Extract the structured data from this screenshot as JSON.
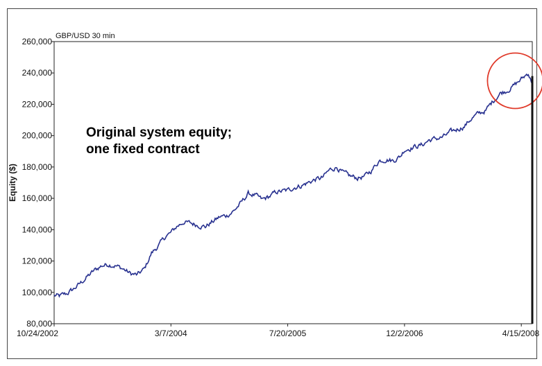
{
  "chart_data": {
    "type": "line",
    "title": "GBP/USD 30 min",
    "xlabel": "",
    "ylabel": "Equity ($)",
    "x_tick_labels": [
      "10/24/2002",
      "3/7/2004",
      "7/20/2005",
      "12/2/2006",
      "4/15/2008"
    ],
    "y_tick_labels": [
      "80,000",
      "100,000",
      "120,000",
      "140,000",
      "160,000",
      "180,000",
      "200,000",
      "220,000",
      "240,000",
      "260,000"
    ],
    "ylim": [
      80000,
      260000
    ],
    "xlim": [
      "2002-10-24",
      "2008-06-01"
    ],
    "grid": false,
    "series": [
      {
        "color": "#27308f",
        "x": [
          "2002-10-24",
          "2002-11-15",
          "2002-12-15",
          "2003-01-15",
          "2003-02-15",
          "2003-03-15",
          "2003-04-15",
          "2003-05-15",
          "2003-06-15",
          "2003-07-15",
          "2003-08-15",
          "2003-09-15",
          "2003-10-15",
          "2003-11-15",
          "2003-12-15",
          "2004-01-15",
          "2004-02-15",
          "2004-03-07",
          "2004-04-01",
          "2004-05-01",
          "2004-06-01",
          "2004-07-01",
          "2004-08-01",
          "2004-09-01",
          "2004-10-01",
          "2004-11-01",
          "2004-12-01",
          "2005-01-01",
          "2005-02-01",
          "2005-03-01",
          "2005-04-01",
          "2005-05-01",
          "2005-06-01",
          "2005-07-20",
          "2005-08-15",
          "2005-09-15",
          "2005-10-15",
          "2005-11-15",
          "2005-12-15",
          "2006-01-15",
          "2006-02-15",
          "2006-03-15",
          "2006-04-15",
          "2006-05-15",
          "2006-06-15",
          "2006-07-15",
          "2006-08-15",
          "2006-09-15",
          "2006-10-15",
          "2006-11-15",
          "2006-12-02",
          "2007-01-15",
          "2007-02-15",
          "2007-03-15",
          "2007-04-15",
          "2007-05-15",
          "2007-06-15",
          "2007-07-15",
          "2007-08-15",
          "2007-09-15",
          "2007-10-15",
          "2007-11-15",
          "2007-12-15",
          "2008-01-15",
          "2008-02-15",
          "2008-03-15",
          "2008-04-15",
          "2008-05-15",
          "2008-06-01"
        ],
        "values": [
          98000,
          97500,
          99000,
          102000,
          106000,
          110000,
          114000,
          117000,
          118000,
          117000,
          115000,
          112000,
          111000,
          115000,
          125000,
          130000,
          136000,
          138000,
          142000,
          145000,
          144000,
          143000,
          142000,
          145000,
          148000,
          149000,
          152000,
          157000,
          163000,
          162000,
          159000,
          161000,
          164000,
          165000,
          167000,
          168000,
          170000,
          172000,
          173000,
          178000,
          180000,
          176000,
          174000,
          173000,
          174000,
          178000,
          184000,
          185000,
          184000,
          187000,
          191000,
          193000,
          194000,
          197000,
          198000,
          199000,
          202000,
          204000,
          206000,
          211000,
          214000,
          216000,
          222000,
          227000,
          229000,
          232000,
          236000,
          240000,
          233000
        ]
      }
    ],
    "annotations": [
      "Original system equity;",
      "one fixed contract"
    ],
    "highlight": {
      "shape": "circle",
      "color": "#e03a2a",
      "center_x": "2008-03-20",
      "center_y": 235000
    }
  }
}
